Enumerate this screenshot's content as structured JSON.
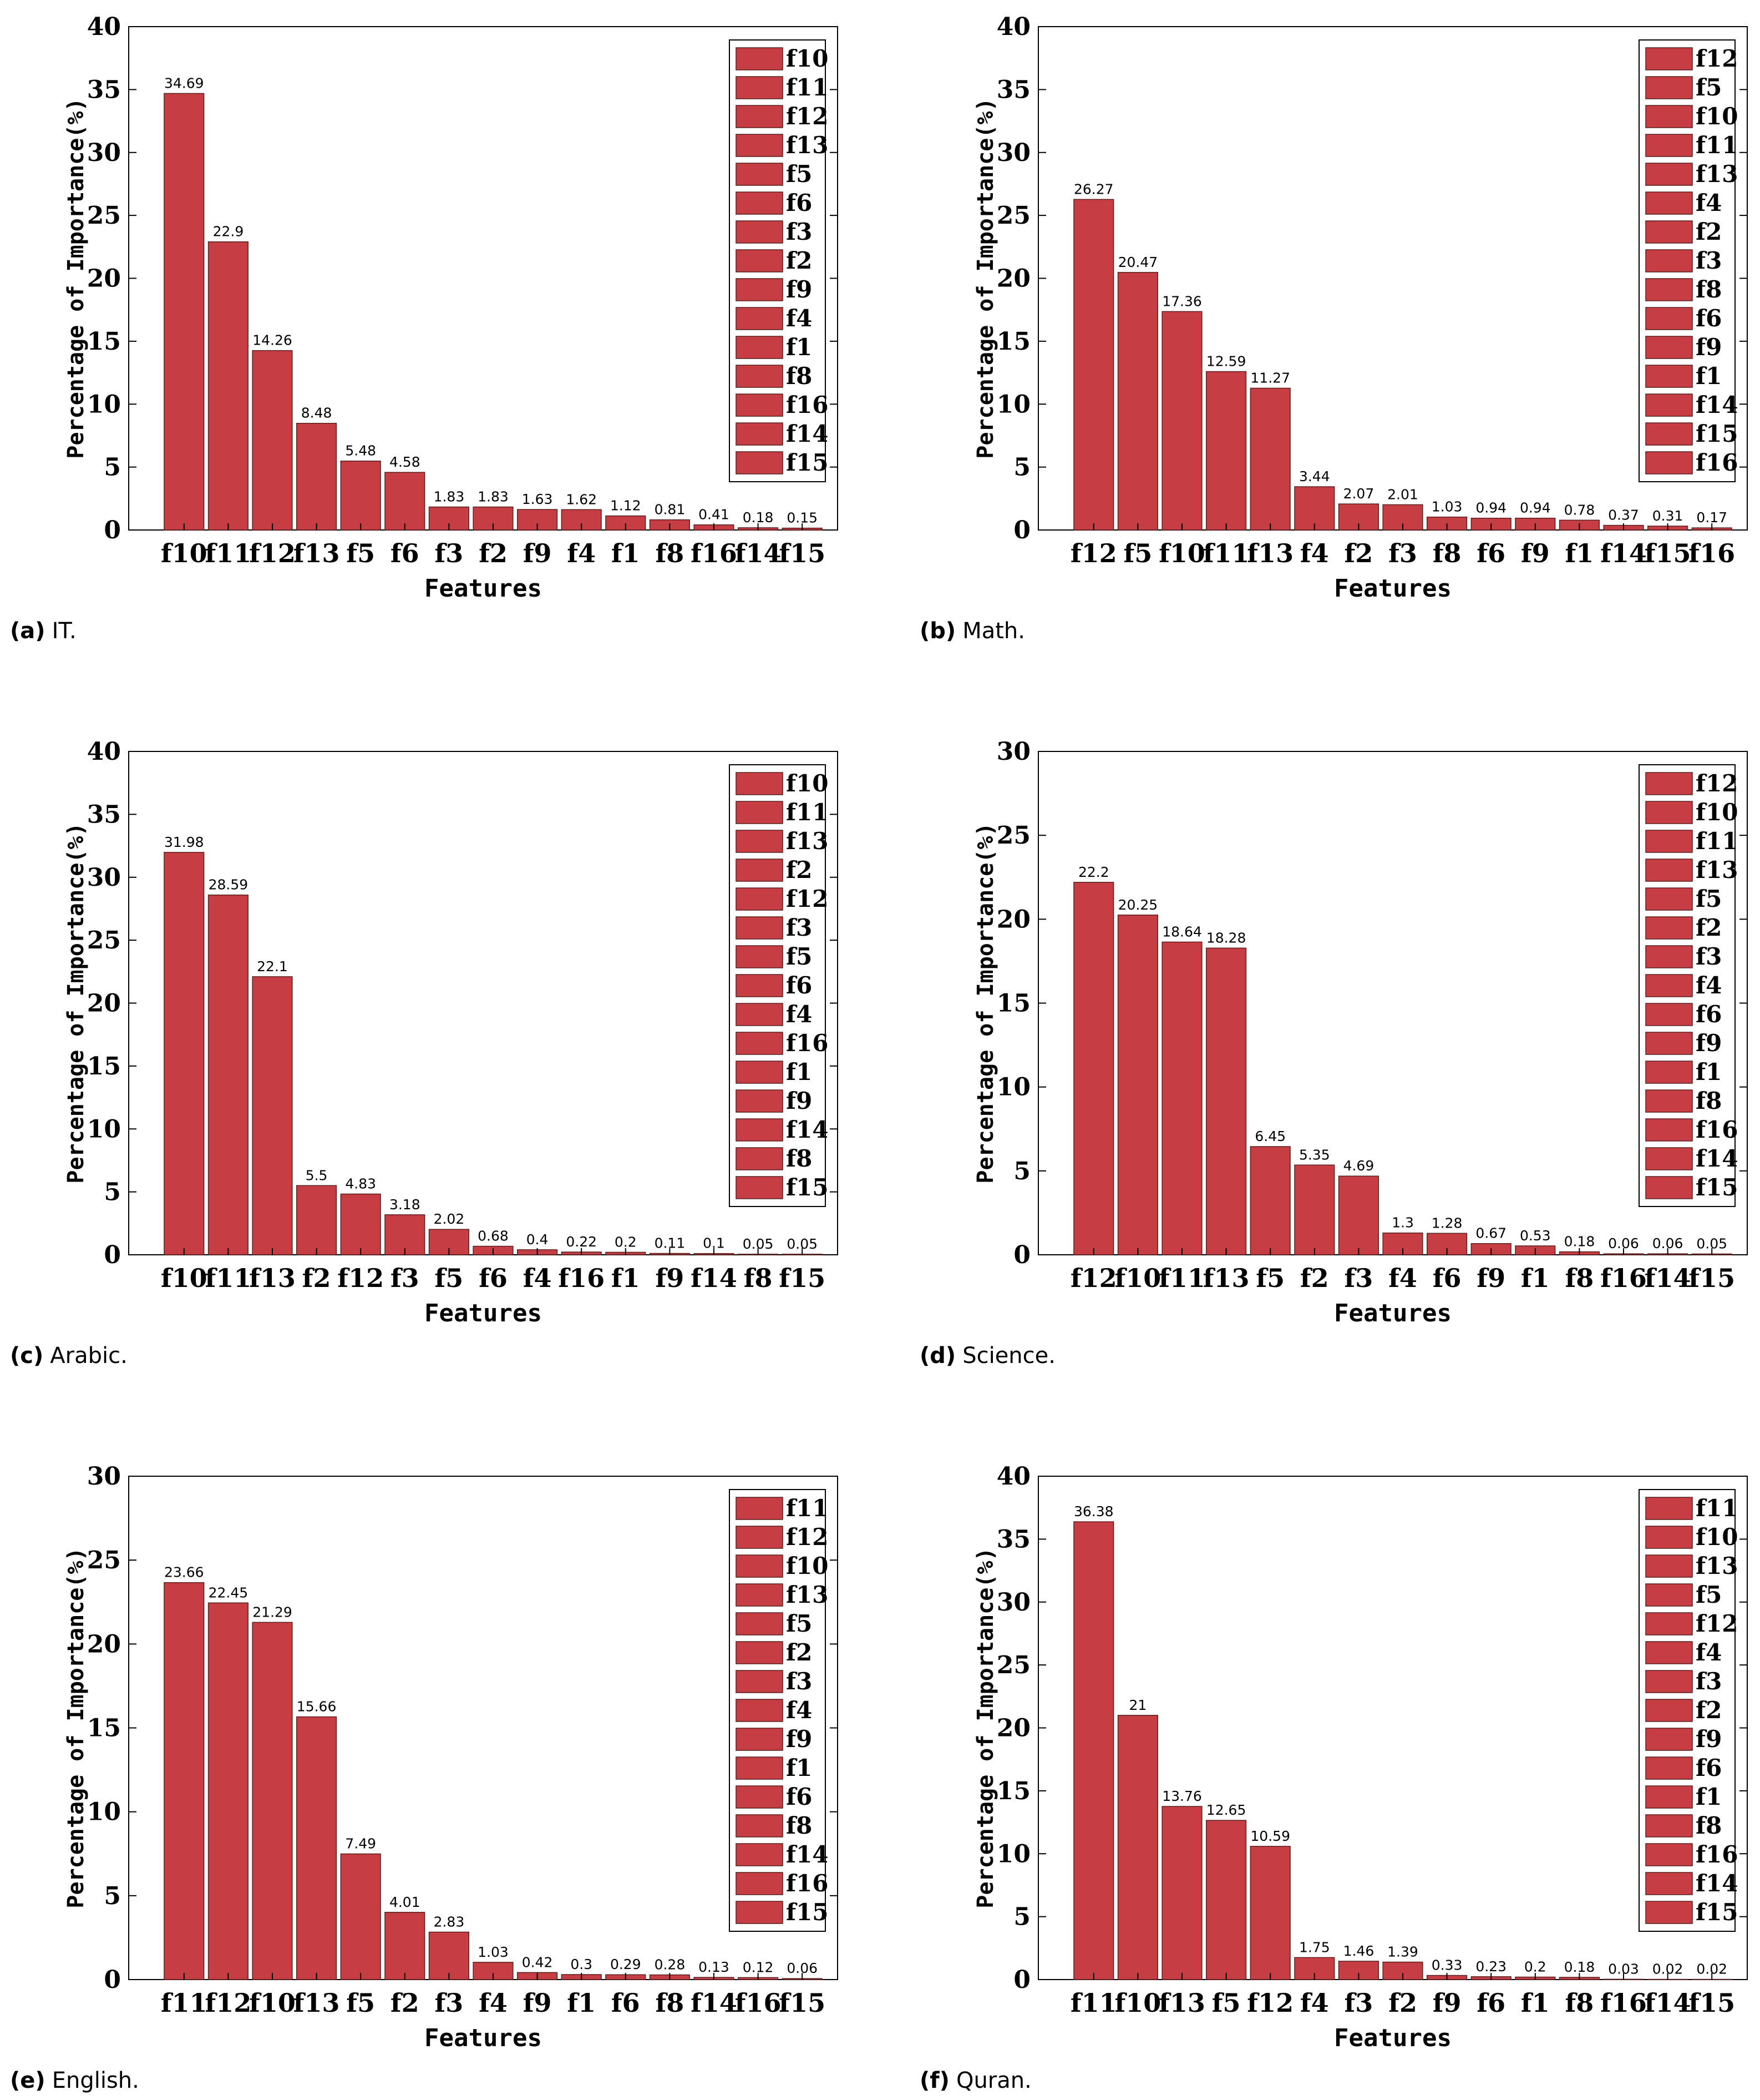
{
  "figure": {
    "bar_color": "#C73D44",
    "bar_edge_color": "#5a2020",
    "axis_color": "#000000",
    "legend_swatch_color": "#C73D44"
  },
  "chart_data": [
    {
      "id": "a",
      "type": "bar",
      "caption_label": "(a)",
      "caption_text": "IT.",
      "categories": [
        "f10",
        "f11",
        "f12",
        "f13",
        "f5",
        "f6",
        "f3",
        "f2",
        "f9",
        "f4",
        "f1",
        "f8",
        "f16",
        "f14",
        "f15"
      ],
      "values": [
        34.69,
        22.9,
        14.26,
        8.48,
        5.48,
        4.58,
        1.83,
        1.83,
        1.63,
        1.62,
        1.12,
        0.81,
        0.41,
        0.18,
        0.15
      ],
      "value_labels": [
        "34.69",
        "22.9",
        "14.26",
        "8.48",
        "5.48",
        "4.58",
        "1.83",
        "1.83",
        "1.63",
        "1.62",
        "1.12",
        "0.81",
        "0.41",
        "0.18",
        "0.15"
      ],
      "xlabel": "Features",
      "ylabel": "Percentage of Importance(%)",
      "ylim": [
        0,
        40
      ],
      "yticks": [
        0,
        5,
        10,
        15,
        20,
        25,
        30,
        35,
        40
      ],
      "legend": [
        "f10",
        "f11",
        "f12",
        "f13",
        "f5",
        "f6",
        "f3",
        "f2",
        "f9",
        "f4",
        "f1",
        "f8",
        "f16",
        "f14",
        "f15"
      ],
      "legend_position": "top-right"
    },
    {
      "id": "b",
      "type": "bar",
      "caption_label": "(b)",
      "caption_text": "Math.",
      "categories": [
        "f12",
        "f5",
        "f10",
        "f11",
        "f13",
        "f4",
        "f2",
        "f3",
        "f8",
        "f6",
        "f9",
        "f1",
        "f14",
        "f15",
        "f16"
      ],
      "values": [
        26.27,
        20.47,
        17.36,
        12.59,
        11.27,
        3.44,
        2.07,
        2.01,
        1.03,
        0.94,
        0.94,
        0.78,
        0.37,
        0.31,
        0.17
      ],
      "value_labels": [
        "26.27",
        "20.47",
        "17.36",
        "12.59",
        "11.27",
        "3.44",
        "2.07",
        "2.01",
        "1.03",
        "0.94",
        "0.94",
        "0.78",
        "0.37",
        "0.31",
        "0.17"
      ],
      "xlabel": "Features",
      "ylabel": "Percentage of Importance(%)",
      "ylim": [
        0,
        40
      ],
      "yticks": [
        0,
        5,
        10,
        15,
        20,
        25,
        30,
        35,
        40
      ],
      "legend": [
        "f12",
        "f5",
        "f10",
        "f11",
        "f13",
        "f4",
        "f2",
        "f3",
        "f8",
        "f6",
        "f9",
        "f1",
        "f14",
        "f15",
        "f16"
      ],
      "legend_position": "top-right"
    },
    {
      "id": "c",
      "type": "bar",
      "caption_label": "(c)",
      "caption_text": "Arabic.",
      "categories": [
        "f10",
        "f11",
        "f13",
        "f2",
        "f12",
        "f3",
        "f5",
        "f6",
        "f4",
        "f16",
        "f1",
        "f9",
        "f14",
        "f8",
        "f15"
      ],
      "values": [
        31.98,
        28.59,
        22.1,
        5.5,
        4.83,
        3.18,
        2.02,
        0.68,
        0.4,
        0.22,
        0.2,
        0.11,
        0.1,
        0.05,
        0.05
      ],
      "value_labels": [
        "31.98",
        "28.59",
        "22.1",
        "5.5",
        "4.83",
        "3.18",
        "2.02",
        "0.68",
        "0.4",
        "0.22",
        "0.2",
        "0.11",
        "0.1",
        "0.05",
        "0.05"
      ],
      "xlabel": "Features",
      "ylabel": "Percentage of Importance(%)",
      "ylim": [
        0,
        40
      ],
      "yticks": [
        0,
        5,
        10,
        15,
        20,
        25,
        30,
        35,
        40
      ],
      "legend": [
        "f10",
        "f11",
        "f13",
        "f2",
        "f12",
        "f3",
        "f5",
        "f6",
        "f4",
        "f16",
        "f1",
        "f9",
        "f14",
        "f8",
        "f15"
      ],
      "legend_position": "top-right"
    },
    {
      "id": "d",
      "type": "bar",
      "caption_label": "(d)",
      "caption_text": "Science.",
      "categories": [
        "f12",
        "f10",
        "f11",
        "f13",
        "f5",
        "f2",
        "f3",
        "f4",
        "f6",
        "f9",
        "f1",
        "f8",
        "f16",
        "f14",
        "f15"
      ],
      "values": [
        22.2,
        20.25,
        18.64,
        18.28,
        6.45,
        5.35,
        4.69,
        1.3,
        1.28,
        0.67,
        0.53,
        0.18,
        0.06,
        0.06,
        0.05
      ],
      "value_labels": [
        "22.2",
        "20.25",
        "18.64",
        "18.28",
        "6.45",
        "5.35",
        "4.69",
        "1.3",
        "1.28",
        "0.67",
        "0.53",
        "0.18",
        "0.06",
        "0.06",
        "0.05"
      ],
      "xlabel": "Features",
      "ylabel": "Percentage of Importance(%)",
      "ylim": [
        0,
        30
      ],
      "yticks": [
        0,
        5,
        10,
        15,
        20,
        25,
        30
      ],
      "legend": [
        "f12",
        "f10",
        "f11",
        "f13",
        "f5",
        "f2",
        "f3",
        "f4",
        "f6",
        "f9",
        "f1",
        "f8",
        "f16",
        "f14",
        "f15"
      ],
      "legend_position": "top-right"
    },
    {
      "id": "e",
      "type": "bar",
      "caption_label": "(e)",
      "caption_text": "English.",
      "categories": [
        "f11",
        "f12",
        "f10",
        "f13",
        "f5",
        "f2",
        "f3",
        "f4",
        "f9",
        "f1",
        "f6",
        "f8",
        "f14",
        "f16",
        "f15"
      ],
      "values": [
        23.66,
        22.45,
        21.29,
        15.66,
        7.49,
        4.01,
        2.83,
        1.03,
        0.42,
        0.3,
        0.29,
        0.28,
        0.13,
        0.12,
        0.06
      ],
      "value_labels": [
        "23.66",
        "22.45",
        "21.29",
        "15.66",
        "7.49",
        "4.01",
        "2.83",
        "1.03",
        "0.42",
        "0.3",
        "0.29",
        "0.28",
        "0.13",
        "0.12",
        "0.06"
      ],
      "xlabel": "Features",
      "ylabel": "Percentage of Importance(%)",
      "ylim": [
        0,
        30
      ],
      "yticks": [
        0,
        5,
        10,
        15,
        20,
        25,
        30
      ],
      "legend": [
        "f11",
        "f12",
        "f10",
        "f13",
        "f5",
        "f2",
        "f3",
        "f4",
        "f9",
        "f1",
        "f6",
        "f8",
        "f14",
        "f16",
        "f15"
      ],
      "legend_position": "top-right"
    },
    {
      "id": "f",
      "type": "bar",
      "caption_label": "(f)",
      "caption_text": "Quran.",
      "categories": [
        "f11",
        "f10",
        "f13",
        "f5",
        "f12",
        "f4",
        "f3",
        "f2",
        "f9",
        "f6",
        "f1",
        "f8",
        "f16",
        "f14",
        "f15"
      ],
      "values": [
        36.38,
        21,
        13.76,
        12.65,
        10.59,
        1.75,
        1.46,
        1.39,
        0.33,
        0.23,
        0.2,
        0.18,
        0.03,
        0.02,
        0.02
      ],
      "value_labels": [
        "36.38",
        "21",
        "13.76",
        "12.65",
        "10.59",
        "1.75",
        "1.46",
        "1.39",
        "0.33",
        "0.23",
        "0.2",
        "0.18",
        "0.03",
        "0.02",
        "0.02"
      ],
      "xlabel": "Features",
      "ylabel": "Percentage of Importance(%)",
      "ylim": [
        0,
        40
      ],
      "yticks": [
        0,
        5,
        10,
        15,
        20,
        25,
        30,
        35,
        40
      ],
      "legend": [
        "f11",
        "f10",
        "f13",
        "f5",
        "f12",
        "f4",
        "f3",
        "f2",
        "f9",
        "f6",
        "f1",
        "f8",
        "f16",
        "f14",
        "f15"
      ],
      "legend_position": "top-right"
    }
  ]
}
